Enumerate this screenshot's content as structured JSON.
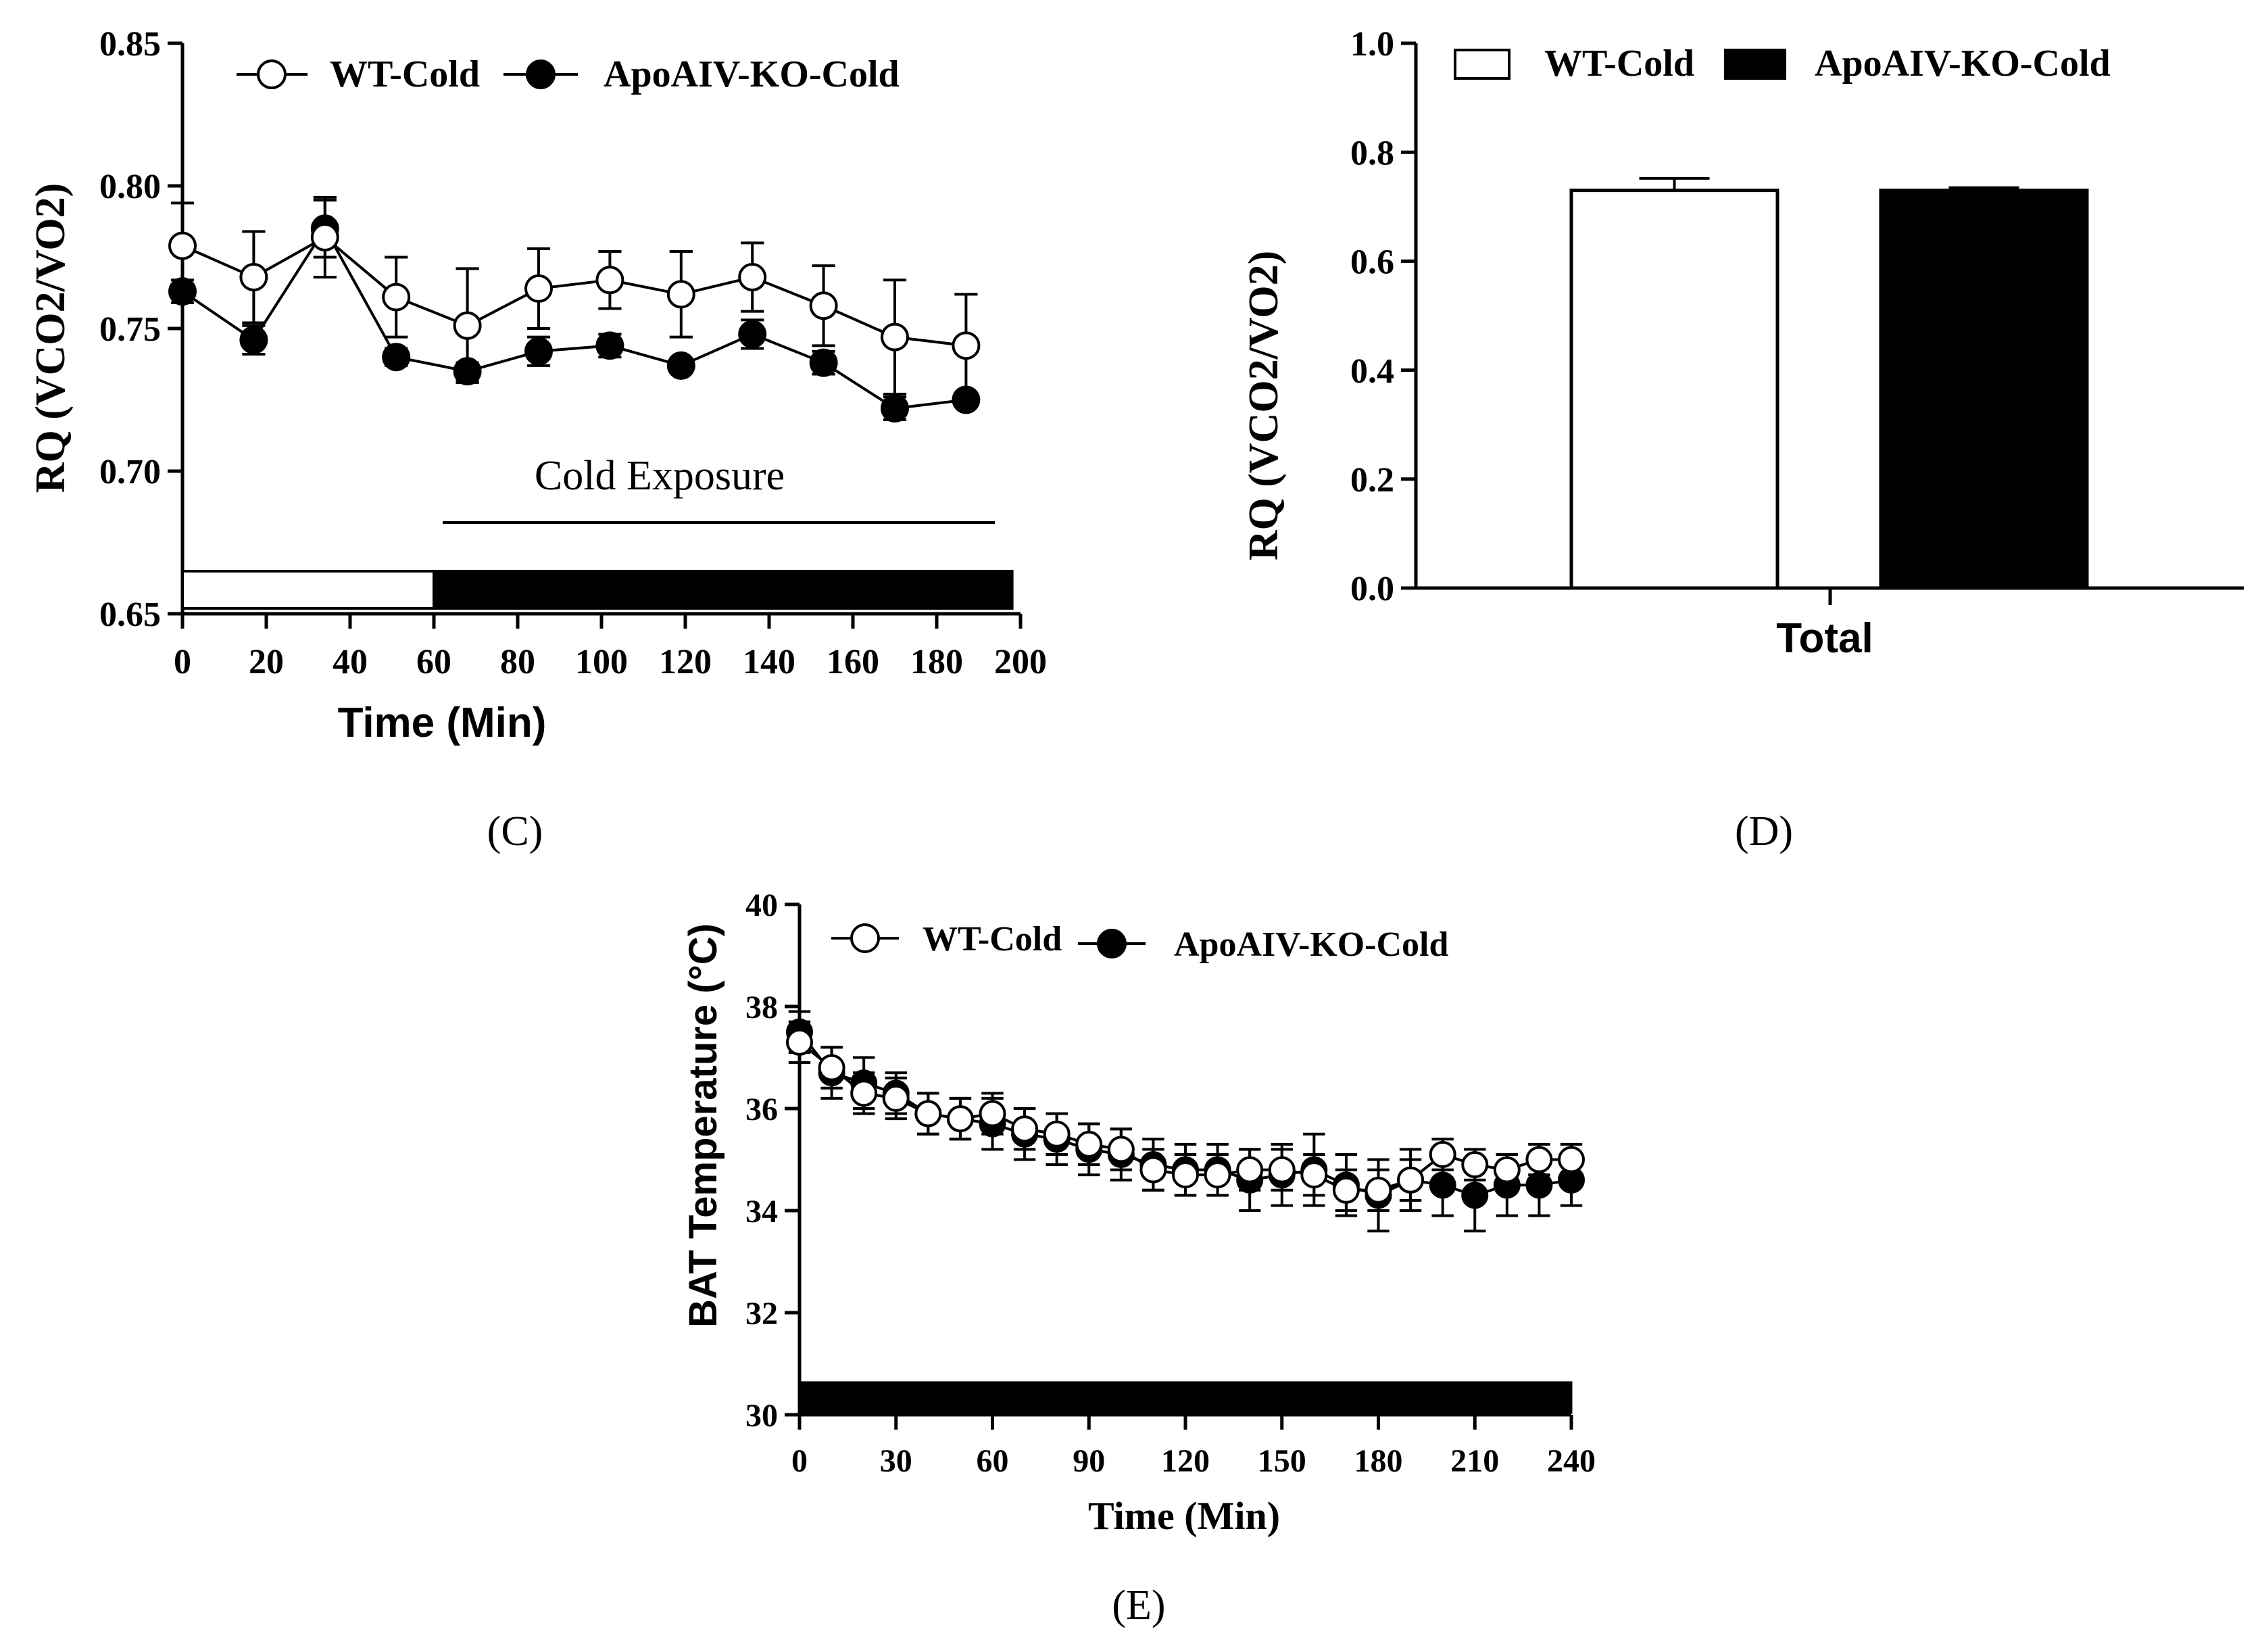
{
  "figure": {
    "panels": [
      {
        "id": "C",
        "label": "(C)"
      },
      {
        "id": "D",
        "label": "(D)"
      },
      {
        "id": "E",
        "label": "(E)"
      }
    ]
  },
  "chart_data": [
    {
      "panel": "C",
      "type": "line",
      "title": "",
      "xlabel": "Time (Min)",
      "ylabel": "RQ (VCO2/VO2)",
      "xlim": [
        0,
        200
      ],
      "ylim": [
        0.65,
        0.85
      ],
      "xticks": [
        "0",
        "20",
        "40",
        "60",
        "80",
        "100",
        "120",
        "140",
        "160",
        "180",
        "200"
      ],
      "yticks": [
        "0.65",
        "0.70",
        "0.75",
        "0.80",
        "0.85"
      ],
      "x": [
        0,
        17,
        34,
        51,
        68,
        85,
        102,
        119,
        136,
        153,
        170,
        187
      ],
      "series": [
        {
          "name": "WT-Cold",
          "marker": "open-circle",
          "values": [
            0.779,
            0.768,
            0.782,
            0.761,
            0.751,
            0.764,
            0.767,
            0.762,
            0.768,
            0.758,
            0.747,
            0.744
          ],
          "errors": [
            0.015,
            0.016,
            0.014,
            0.014,
            0.02,
            0.014,
            0.01,
            0.015,
            0.012,
            0.014,
            0.02,
            0.018
          ]
        },
        {
          "name": "ApoAIV-KO-Cold",
          "marker": "filled-circle",
          "values": [
            0.763,
            0.746,
            0.785,
            0.74,
            0.735,
            0.742,
            0.744,
            0.737,
            0.748,
            0.738,
            0.722,
            0.725
          ],
          "errors": [
            0.004,
            0.005,
            0.01,
            0.003,
            0.003,
            0.005,
            0.004,
            0.002,
            0.005,
            0.004,
            0.004,
            0.002
          ]
        }
      ],
      "annotation": "Cold Exposure",
      "annotation_range": [
        62,
        192
      ],
      "condition_bar": [
        {
          "start": 0,
          "end": 60,
          "fill": "white"
        },
        {
          "start": 60,
          "end": 198,
          "fill": "black"
        }
      ],
      "legend": "top-left"
    },
    {
      "panel": "D",
      "type": "bar",
      "title": "",
      "xlabel": "",
      "ylabel": "RQ (VCO2/VO2)",
      "ylim": [
        0.0,
        1.0
      ],
      "yticks": [
        "0.0",
        "0.2",
        "0.4",
        "0.6",
        "0.8",
        "1.0"
      ],
      "categories": [
        "Total"
      ],
      "series": [
        {
          "name": "WT-Cold",
          "fill": "white",
          "values": [
            0.73
          ],
          "errors": [
            0.022
          ]
        },
        {
          "name": "ApoAIV-KO-Cold",
          "fill": "black",
          "values": [
            0.73
          ],
          "errors": [
            0.005
          ]
        }
      ],
      "legend": "top"
    },
    {
      "panel": "E",
      "type": "line",
      "title": "",
      "xlabel": "Time (Min)",
      "ylabel": "BAT Temperature  (°C)",
      "xlim": [
        0,
        240
      ],
      "ylim": [
        30,
        40
      ],
      "xticks": [
        "0",
        "30",
        "60",
        "90",
        "120",
        "150",
        "180",
        "210",
        "240"
      ],
      "yticks": [
        "30",
        "32",
        "34",
        "36",
        "38",
        "40"
      ],
      "x": [
        0,
        10,
        20,
        30,
        40,
        50,
        60,
        70,
        80,
        90,
        100,
        110,
        120,
        130,
        140,
        150,
        160,
        170,
        180,
        190,
        200,
        210,
        220,
        230,
        240
      ],
      "series": [
        {
          "name": "WT-Cold",
          "marker": "open-circle",
          "values": [
            37.3,
            36.8,
            36.3,
            36.2,
            35.9,
            35.8,
            35.9,
            35.6,
            35.5,
            35.3,
            35.2,
            34.8,
            34.7,
            34.7,
            34.8,
            34.8,
            34.7,
            34.4,
            34.4,
            34.6,
            35.1,
            34.9,
            34.8,
            35.0,
            35.0
          ],
          "errors": [
            0.4,
            0.4,
            0.4,
            0.4,
            0.4,
            0.4,
            0.4,
            0.4,
            0.4,
            0.4,
            0.4,
            0.4,
            0.4,
            0.4,
            0.4,
            0.4,
            0.4,
            0.4,
            0.4,
            0.4,
            0.3,
            0.3,
            0.3,
            0.3,
            0.3
          ]
        },
        {
          "name": "ApoAIV-KO-Cold",
          "marker": "filled-circle",
          "values": [
            37.5,
            36.7,
            36.5,
            36.3,
            35.9,
            35.8,
            35.7,
            35.5,
            35.4,
            35.2,
            35.1,
            34.9,
            34.8,
            34.8,
            34.6,
            34.7,
            34.8,
            34.5,
            34.3,
            34.6,
            34.5,
            34.3,
            34.5,
            34.5,
            34.6
          ],
          "errors": [
            0.4,
            0.5,
            0.5,
            0.4,
            0.4,
            0.4,
            0.5,
            0.5,
            0.5,
            0.5,
            0.5,
            0.5,
            0.5,
            0.5,
            0.6,
            0.6,
            0.7,
            0.6,
            0.7,
            0.6,
            0.6,
            0.7,
            0.6,
            0.6,
            0.5
          ]
        }
      ],
      "condition_bar": [
        {
          "start": 0,
          "end": 240,
          "fill": "black"
        }
      ],
      "legend": "top-left"
    }
  ]
}
